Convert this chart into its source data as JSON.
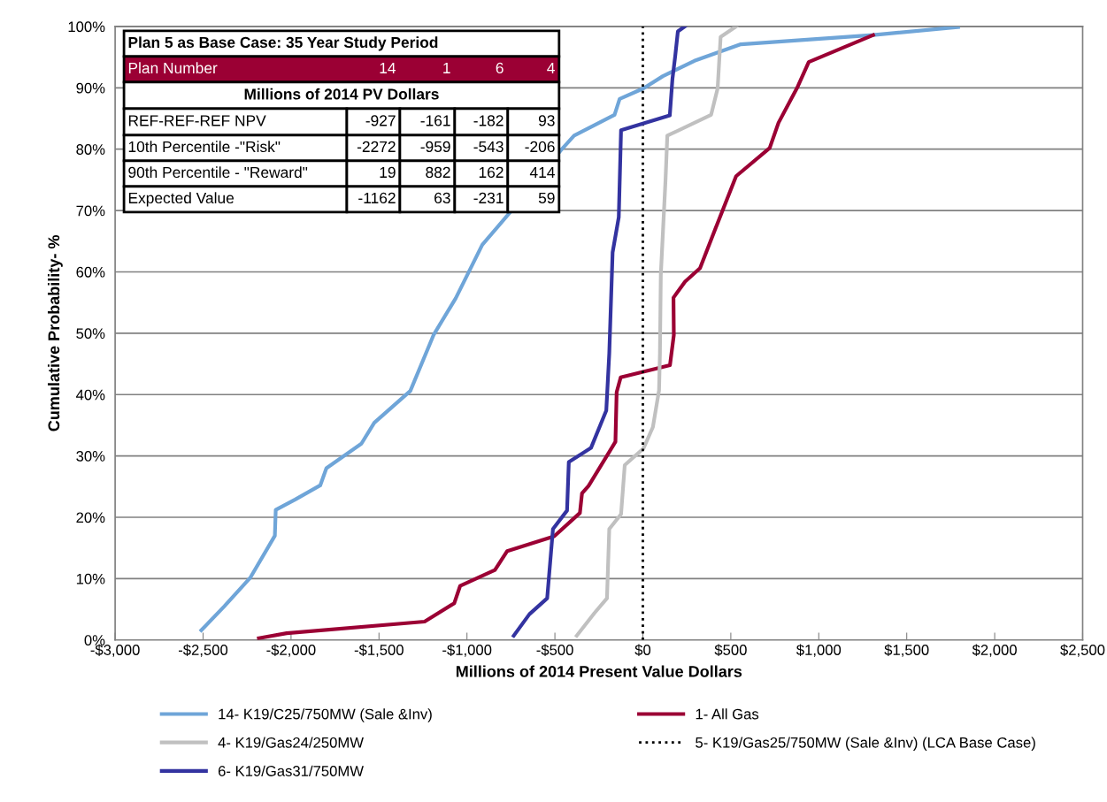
{
  "chart_data": {
    "type": "line",
    "xlabel": "Millions of 2014 Present Value Dollars",
    "ylabel": "Cumulative Probability- %",
    "xlim": [
      -3000,
      2500
    ],
    "xticks": [
      {
        "value": -3000,
        "label": "-$3,000"
      },
      {
        "value": -2500,
        "label": "-$2,500"
      },
      {
        "value": -2000,
        "label": "-$2,000"
      },
      {
        "value": -1500,
        "label": "-$1,500"
      },
      {
        "value": -1000,
        "label": "-$1,000"
      },
      {
        "value": -500,
        "label": "-$500"
      },
      {
        "value": 0,
        "label": "$0"
      },
      {
        "value": 500,
        "label": "$500"
      },
      {
        "value": 1000,
        "label": "$1,000"
      },
      {
        "value": 1500,
        "label": "$1,500"
      },
      {
        "value": 2000,
        "label": "$2,000"
      },
      {
        "value": 2500,
        "label": "$2,500"
      }
    ],
    "ylim": [
      0,
      100
    ],
    "yticks": [
      {
        "value": 0,
        "label": "0%"
      },
      {
        "value": 10,
        "label": "10%"
      },
      {
        "value": 20,
        "label": "20%"
      },
      {
        "value": 30,
        "label": "30%"
      },
      {
        "value": 40,
        "label": "40%"
      },
      {
        "value": 50,
        "label": "50%"
      },
      {
        "value": 60,
        "label": "60%"
      },
      {
        "value": 70,
        "label": "70%"
      },
      {
        "value": 80,
        "label": "80%"
      },
      {
        "value": 90,
        "label": "90%"
      },
      {
        "value": 100,
        "label": "100%"
      }
    ],
    "grid": "y",
    "legend": "bottom",
    "marker": "none",
    "line_style": "solid",
    "series": [
      {
        "name": "14- K19/C25/750MW (Sale &Inv)",
        "color": "#6fa5d8",
        "x": [
          -2510,
          -2379,
          -2233,
          -2092,
          -2087,
          -1976,
          -1834,
          -1799,
          -1600,
          -1527,
          -1322,
          -1190,
          -1064,
          -913,
          -755,
          -467,
          -391,
          -161,
          -132,
          3,
          114,
          293,
          557,
          1309,
          1792
        ],
        "values": [
          1.6,
          5.5,
          10.1,
          17.0,
          21.2,
          22.9,
          25.2,
          28.0,
          32.0,
          35.4,
          40.6,
          49.7,
          55.7,
          64.4,
          69.7,
          79.8,
          82.2,
          85.6,
          88.2,
          89.9,
          91.9,
          94.4,
          97.1,
          98.6,
          99.9
        ]
      },
      {
        "name": "1- All Gas",
        "color": "#9b0034",
        "x": [
          -2183,
          -2025,
          -1241,
          -1072,
          -1039,
          -841,
          -771,
          -504,
          -358,
          -346,
          -309,
          -156,
          -149,
          -126,
          154,
          176,
          174,
          240,
          325,
          416,
          530,
          721,
          771,
          877,
          943,
          1309
        ],
        "values": [
          0.3,
          1.1,
          3.0,
          6.0,
          8.8,
          11.4,
          14.5,
          16.9,
          20.7,
          23.9,
          25.1,
          32.3,
          40.4,
          42.8,
          44.8,
          49.7,
          55.8,
          58.4,
          60.6,
          67.3,
          75.6,
          80.2,
          84.3,
          90.0,
          94.2,
          98.6
        ]
      },
      {
        "name": "4- K19/Gas24/250MW",
        "color": "#c0c0c0",
        "x": [
          -376,
          -275,
          -204,
          -191,
          -124,
          -103,
          3,
          57,
          92,
          97,
          102,
          129,
          139,
          388,
          425,
          442,
          530
        ],
        "values": [
          0.7,
          4.4,
          6.8,
          18.1,
          20.5,
          28.5,
          31.2,
          34.7,
          40.7,
          46.7,
          59.5,
          75.1,
          82.2,
          85.6,
          89.9,
          98.3,
          100
        ]
      },
      {
        "name": "5- K19/Gas25/750MW (Sale &Inv) (LCA Base Case)",
        "color": "#000000",
        "line_style": "dotted",
        "x": [
          0,
          0
        ],
        "values": [
          0,
          100
        ]
      },
      {
        "name": "6- K19/Gas31/750MW",
        "color": "#3333a0",
        "x": [
          -734,
          -645,
          -544,
          -511,
          -431,
          -421,
          -295,
          -208,
          -191,
          -172,
          -137,
          -124,
          153,
          168,
          184,
          199,
          238
        ],
        "values": [
          0.7,
          4.2,
          6.8,
          18.1,
          21.1,
          29.0,
          31.3,
          37.4,
          46.7,
          63.2,
          68.9,
          83.1,
          85.5,
          91.4,
          95.2,
          99.2,
          100
        ]
      }
    ],
    "annotations": [
      "Plan 5 as Base Case: 35 Year Study Period",
      "Plan Number",
      "14",
      "1",
      "6",
      "4",
      "Millions of 2014 PV Dollars",
      "REF-REF-REF NPV",
      "-927",
      "-161",
      "-182",
      "93",
      "10th Percentile -\"Risk\"",
      "-2272",
      "-959",
      "-543",
      "-206",
      "90th Percentile - \"Reward\"",
      "19",
      "882",
      "162",
      "414",
      "Expected Value",
      "-1162",
      "63",
      "-231",
      "59"
    ]
  }
}
